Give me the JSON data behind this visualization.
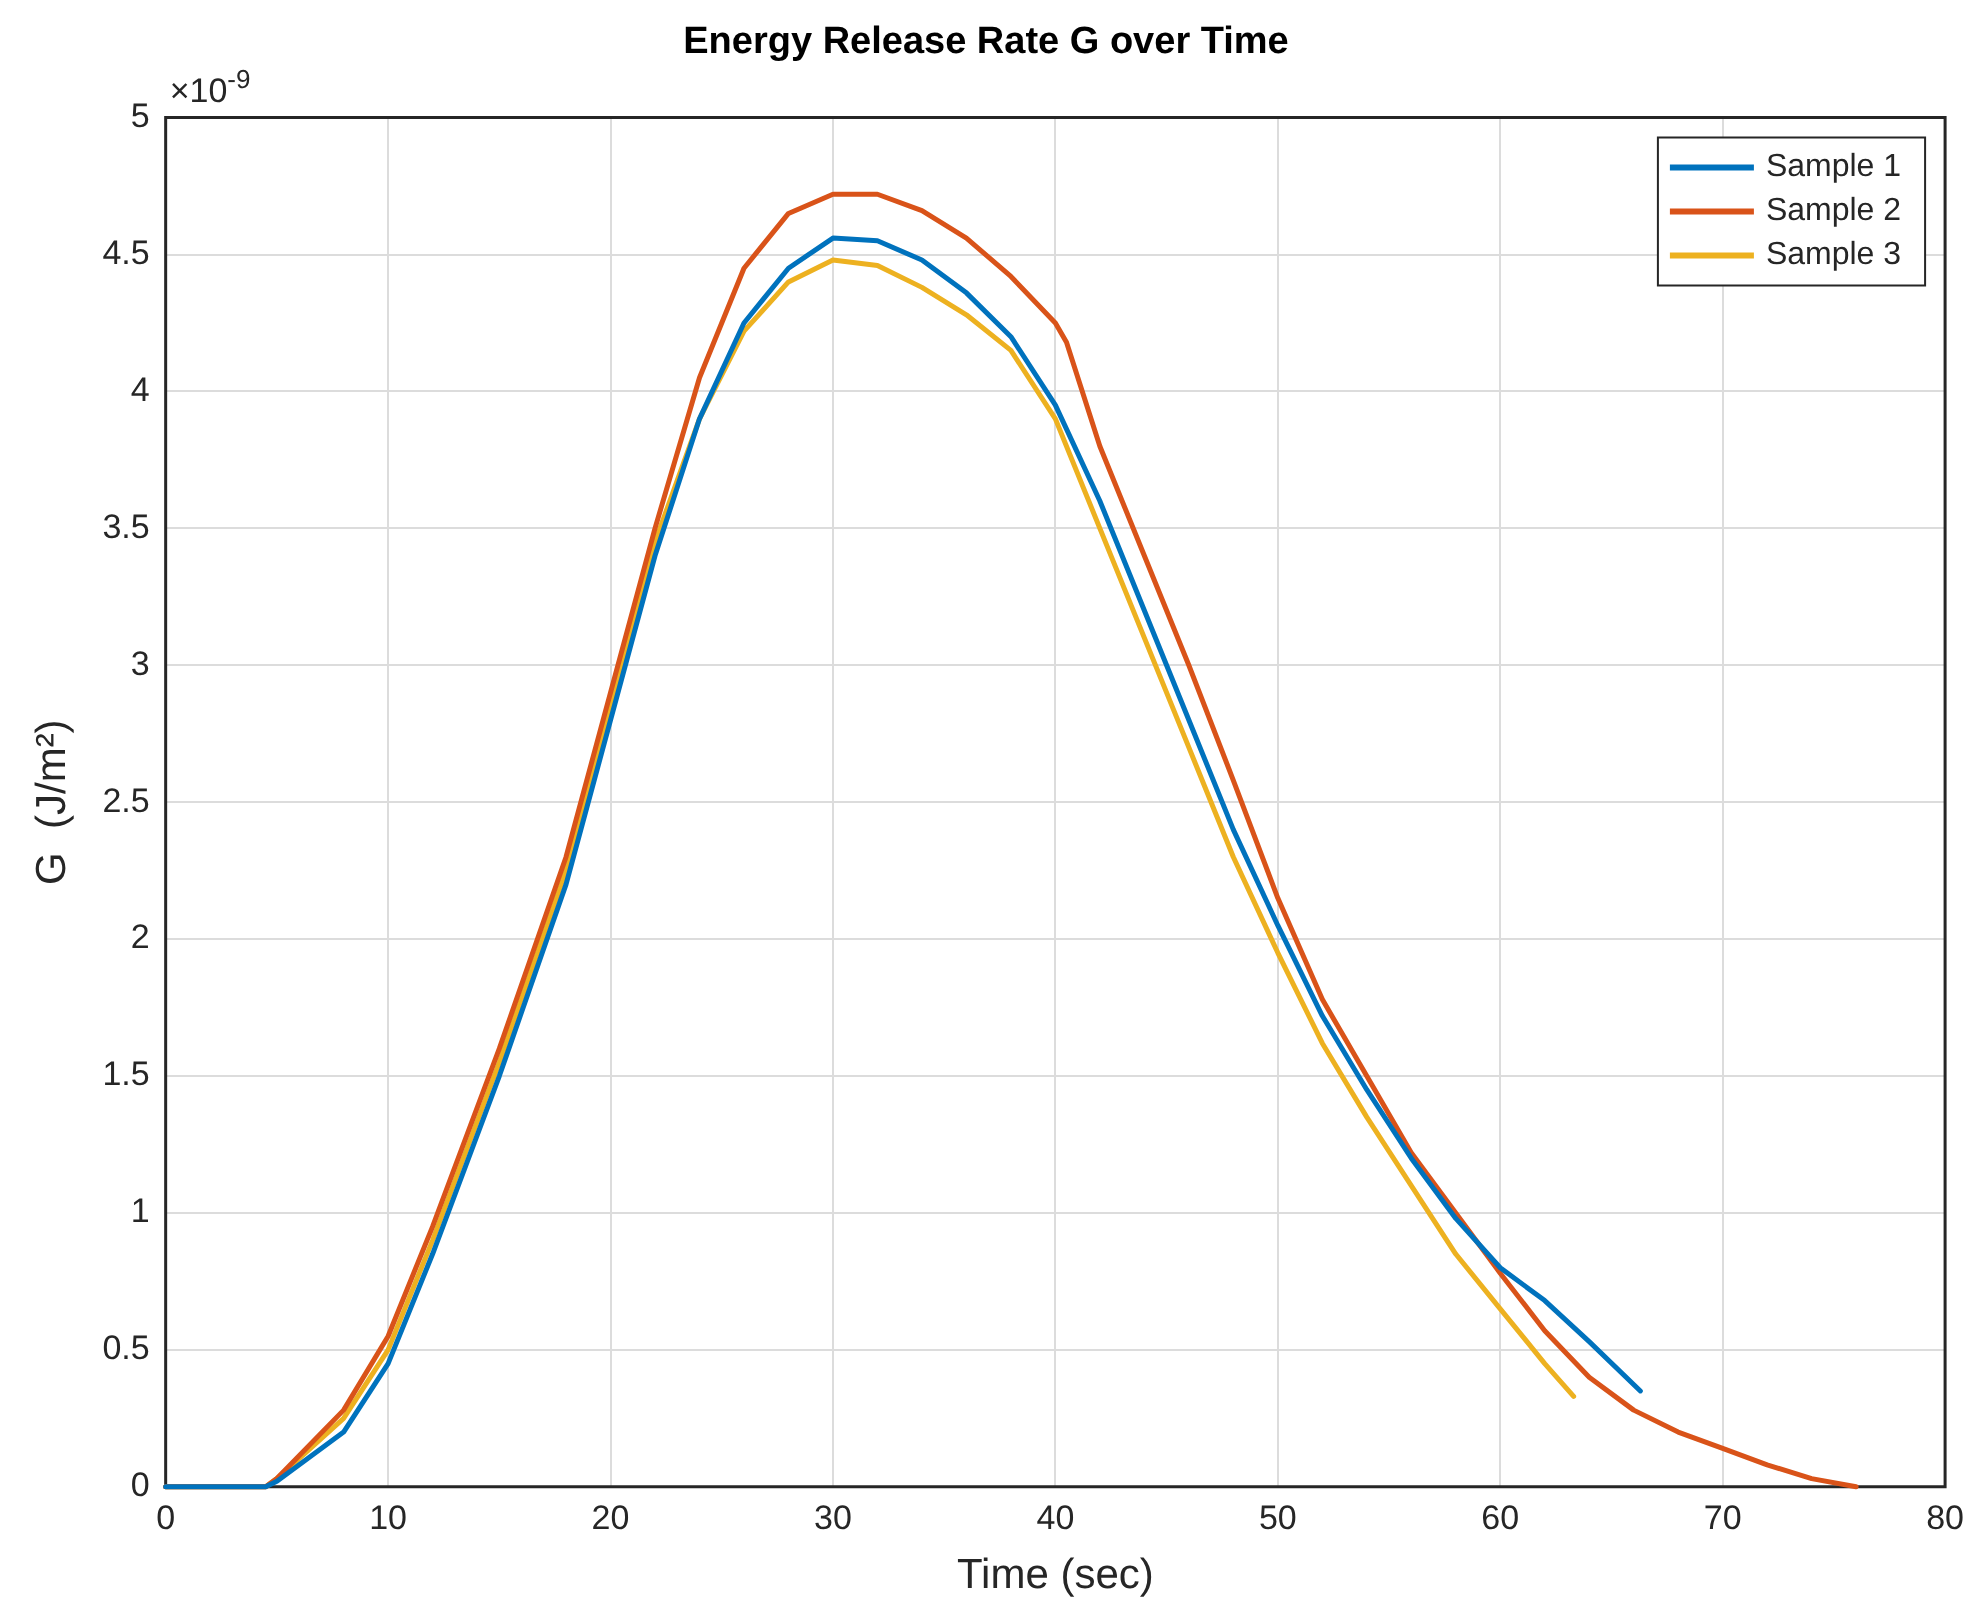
{
  "chart_data": {
    "type": "line",
    "title": "Energy Release Rate G over Time",
    "xlabel": "Time (sec)",
    "ylabel": "G  (J/m²)",
    "annotations": [
      "×10$^{-9}$"
    ],
    "xlim": [
      0,
      80
    ],
    "xticks": [
      0,
      10,
      20,
      30,
      40,
      50,
      60,
      70,
      80
    ],
    "ylim": [
      0,
      5
    ],
    "yticks": [
      0,
      0.5,
      1,
      1.5,
      2,
      2.5,
      3,
      3.5,
      4,
      4.5,
      5
    ],
    "grid": true,
    "legend": "top right",
    "marker": "none",
    "line_style": "solid",
    "series": [
      {
        "name": "Sample 1",
        "color": "#0072bd",
        "x": [
          0,
          4.5,
          5,
          8,
          10,
          12,
          15,
          18,
          20,
          22,
          24,
          26,
          28,
          30,
          32,
          34,
          36,
          38,
          40,
          42,
          44,
          46,
          48,
          50,
          52,
          54,
          56,
          58,
          60,
          62,
          64,
          66.3
        ],
        "values": [
          0,
          0,
          0.02,
          0.2,
          0.45,
          0.85,
          1.5,
          2.2,
          2.8,
          3.4,
          3.9,
          4.25,
          4.45,
          4.56,
          4.55,
          4.48,
          4.36,
          4.2,
          3.95,
          3.6,
          3.2,
          2.8,
          2.4,
          2.05,
          1.72,
          1.45,
          1.2,
          0.98,
          0.8,
          0.68,
          0.53,
          0.35
        ]
      },
      {
        "name": "Sample 2",
        "color": "#d95319",
        "x": [
          0,
          4.5,
          5,
          8,
          10,
          12,
          15,
          18,
          20,
          22,
          24,
          26,
          28,
          30,
          32,
          34,
          36,
          38,
          40,
          40.5,
          42,
          44,
          46,
          48,
          50,
          52,
          54,
          56,
          58,
          60,
          62,
          64,
          66,
          68,
          70,
          72,
          74,
          76
        ],
        "values": [
          0,
          0,
          0.03,
          0.28,
          0.55,
          0.95,
          1.6,
          2.3,
          2.9,
          3.5,
          4.05,
          4.45,
          4.65,
          4.72,
          4.72,
          4.66,
          4.56,
          4.42,
          4.25,
          4.18,
          3.8,
          3.4,
          3.0,
          2.58,
          2.15,
          1.78,
          1.5,
          1.22,
          1.0,
          0.78,
          0.57,
          0.4,
          0.28,
          0.2,
          0.14,
          0.08,
          0.03,
          0
        ]
      },
      {
        "name": "Sample 3",
        "color": "#edb120",
        "x": [
          0,
          4.5,
          5,
          8,
          10,
          12,
          15,
          18,
          20,
          22,
          24,
          26,
          28,
          30,
          32,
          34,
          36,
          38,
          40,
          42,
          44,
          46,
          48,
          50,
          52,
          54,
          56,
          58,
          60,
          62,
          63.3
        ],
        "values": [
          0,
          0,
          0.03,
          0.25,
          0.5,
          0.9,
          1.55,
          2.25,
          2.85,
          3.45,
          3.9,
          4.22,
          4.4,
          4.48,
          4.46,
          4.38,
          4.28,
          4.15,
          3.9,
          3.5,
          3.1,
          2.7,
          2.3,
          1.95,
          1.62,
          1.35,
          1.1,
          0.85,
          0.65,
          0.45,
          0.33
        ]
      }
    ]
  }
}
